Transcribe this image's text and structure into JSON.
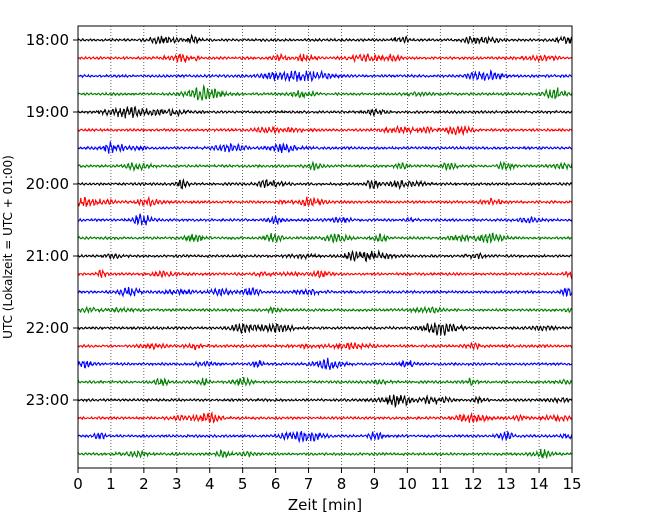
{
  "chart_data": {
    "type": "line",
    "title": "",
    "xlabel": "Zeit  [min]",
    "ylabel": "UTC (Lokalzeit = UTC + 01:00)",
    "xlim": [
      0,
      15
    ],
    "x_ticks": [
      "0",
      "1",
      "2",
      "3",
      "4",
      "5",
      "6",
      "7",
      "8",
      "9",
      "10",
      "11",
      "12",
      "13",
      "14",
      "15"
    ],
    "y_ticks": [
      "18:00",
      "19:00",
      "20:00",
      "21:00",
      "22:00",
      "23:00"
    ],
    "grid": "vertical-dotted",
    "trace_interval_min": 15,
    "start_time": "18:00",
    "trace_count": 24,
    "trace_colors": [
      "#000000",
      "#ff0000",
      "#0000ff",
      "#008000"
    ],
    "data_note": "helicorder seismogram traces; amplitude not labeled"
  }
}
